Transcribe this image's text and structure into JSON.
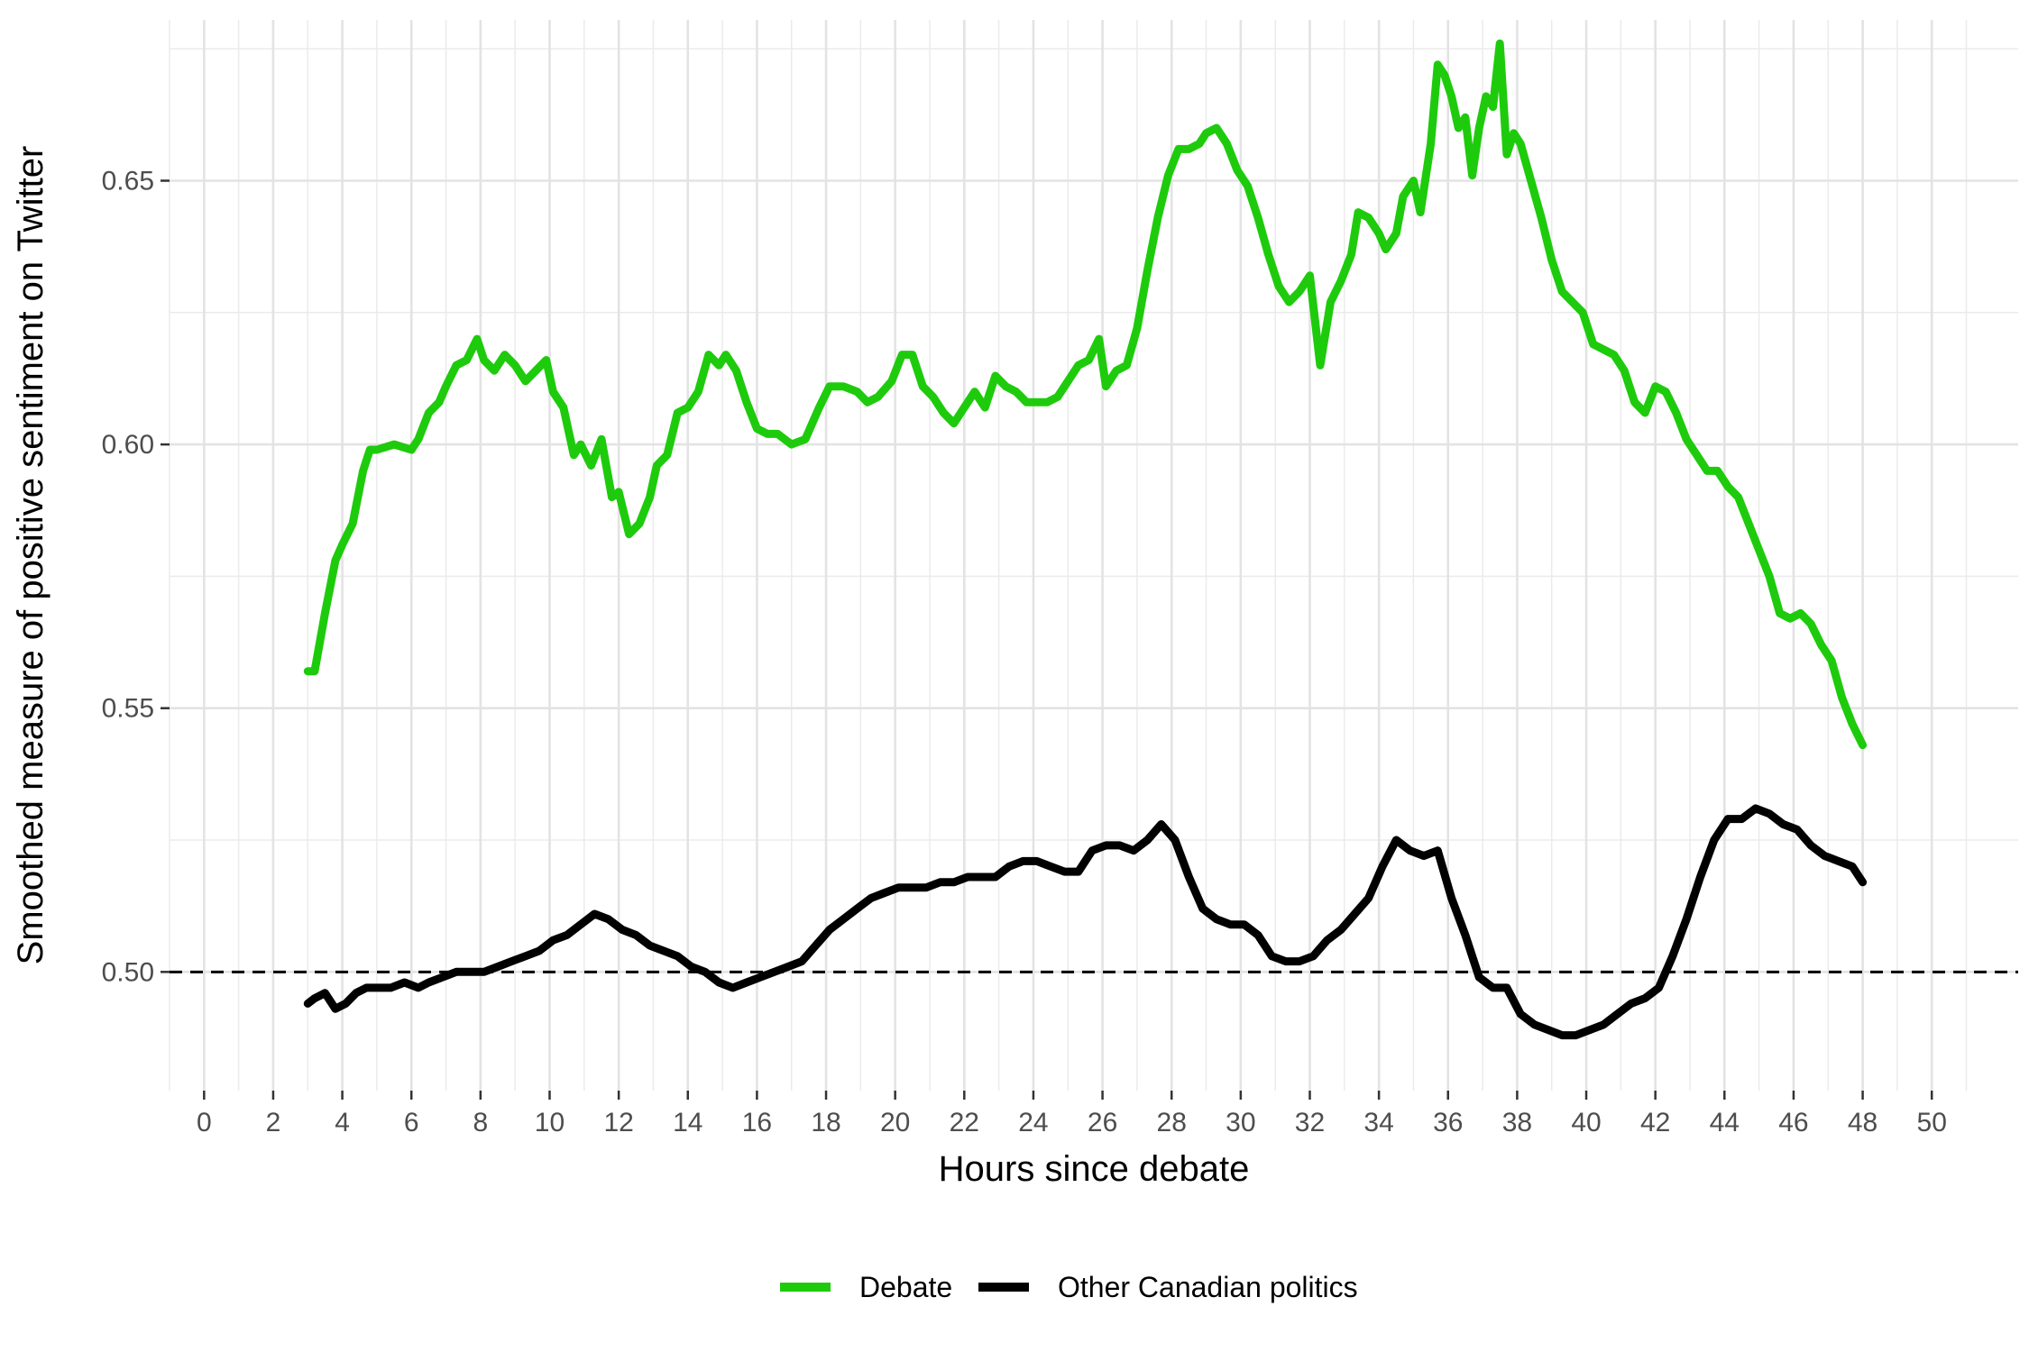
{
  "chart_data": {
    "type": "line",
    "xlabel": "Hours since debate",
    "ylabel": "Smoothed measure of positive sentiment on Twitter",
    "xlim": [
      -1,
      52.5
    ],
    "ylim": [
      0.4775,
      0.6805
    ],
    "x_ticks": [
      0,
      2,
      4,
      6,
      8,
      10,
      12,
      14,
      16,
      18,
      20,
      22,
      24,
      26,
      28,
      30,
      32,
      34,
      36,
      38,
      40,
      42,
      44,
      46,
      48,
      50
    ],
    "x_tick_labels": [
      "0",
      "2",
      "4",
      "6",
      "8",
      "10",
      "12",
      "14",
      "16",
      "18",
      "20",
      "22",
      "24",
      "26",
      "28",
      "30",
      "32",
      "34",
      "36",
      "38",
      "40",
      "42",
      "44",
      "46",
      "48",
      "50"
    ],
    "y_ticks": [
      0.5,
      0.55,
      0.6,
      0.65
    ],
    "y_tick_labels": [
      "0.50",
      "0.55",
      "0.60",
      "0.65"
    ],
    "reference_line": {
      "y": 0.5,
      "style": "dashed",
      "color": "#000000"
    },
    "grid": true,
    "legend_position": "bottom",
    "series": [
      {
        "name": "Debate",
        "color": "#1ecb0c",
        "x": [
          3.0,
          3.2,
          3.5,
          3.8,
          4.0,
          4.3,
          4.6,
          4.8,
          5.0,
          5.5,
          6.0,
          6.2,
          6.5,
          6.8,
          7.0,
          7.3,
          7.6,
          7.9,
          8.1,
          8.4,
          8.7,
          9.0,
          9.3,
          9.6,
          9.9,
          10.1,
          10.4,
          10.7,
          10.9,
          11.2,
          11.5,
          11.8,
          12.0,
          12.3,
          12.6,
          12.9,
          13.1,
          13.4,
          13.7,
          14.0,
          14.3,
          14.6,
          14.9,
          15.1,
          15.4,
          15.7,
          16.0,
          16.3,
          16.6,
          17.0,
          17.4,
          17.8,
          18.1,
          18.5,
          18.9,
          19.2,
          19.5,
          19.9,
          20.2,
          20.5,
          20.8,
          21.1,
          21.4,
          21.7,
          22.0,
          22.3,
          22.6,
          22.9,
          23.2,
          23.5,
          23.8,
          24.1,
          24.4,
          24.7,
          25.0,
          25.3,
          25.6,
          25.9,
          26.1,
          26.4,
          26.7,
          27.0,
          27.3,
          27.6,
          27.9,
          28.2,
          28.5,
          28.8,
          29.0,
          29.3,
          29.6,
          29.9,
          30.2,
          30.5,
          30.8,
          31.1,
          31.4,
          31.7,
          32.0,
          32.3,
          32.6,
          32.9,
          33.2,
          33.4,
          33.7,
          34.0,
          34.2,
          34.5,
          34.7,
          35.0,
          35.2,
          35.5,
          35.7,
          35.9,
          36.1,
          36.3,
          36.5,
          36.7,
          36.9,
          37.1,
          37.3,
          37.5,
          37.7,
          37.9,
          38.1,
          38.4,
          38.7,
          39.0,
          39.3,
          39.6,
          39.9,
          40.2,
          40.5,
          40.8,
          41.1,
          41.4,
          41.7,
          42.0,
          42.3,
          42.6,
          42.9,
          43.2,
          43.5,
          43.8,
          44.1,
          44.4,
          44.7,
          45.0,
          45.3,
          45.6,
          45.9,
          46.2,
          46.5,
          46.8,
          47.1,
          47.4,
          47.7,
          48.0
        ],
        "y": [
          0.557,
          0.557,
          0.568,
          0.578,
          0.581,
          0.585,
          0.595,
          0.599,
          0.599,
          0.6,
          0.599,
          0.601,
          0.606,
          0.608,
          0.611,
          0.615,
          0.616,
          0.62,
          0.616,
          0.614,
          0.617,
          0.615,
          0.612,
          0.614,
          0.616,
          0.61,
          0.607,
          0.598,
          0.6,
          0.596,
          0.601,
          0.59,
          0.591,
          0.583,
          0.585,
          0.59,
          0.596,
          0.598,
          0.606,
          0.607,
          0.61,
          0.617,
          0.615,
          0.617,
          0.614,
          0.608,
          0.603,
          0.602,
          0.602,
          0.6,
          0.601,
          0.607,
          0.611,
          0.611,
          0.61,
          0.608,
          0.609,
          0.612,
          0.617,
          0.617,
          0.611,
          0.609,
          0.606,
          0.604,
          0.607,
          0.61,
          0.607,
          0.613,
          0.611,
          0.61,
          0.608,
          0.608,
          0.608,
          0.609,
          0.612,
          0.615,
          0.616,
          0.62,
          0.611,
          0.614,
          0.615,
          0.622,
          0.633,
          0.643,
          0.651,
          0.656,
          0.656,
          0.657,
          0.659,
          0.66,
          0.657,
          0.652,
          0.649,
          0.643,
          0.636,
          0.63,
          0.627,
          0.629,
          0.632,
          0.615,
          0.627,
          0.631,
          0.636,
          0.644,
          0.643,
          0.64,
          0.637,
          0.64,
          0.647,
          0.65,
          0.644,
          0.657,
          0.672,
          0.67,
          0.666,
          0.66,
          0.662,
          0.651,
          0.66,
          0.666,
          0.664,
          0.676,
          0.655,
          0.659,
          0.657,
          0.65,
          0.643,
          0.635,
          0.629,
          0.627,
          0.625,
          0.619,
          0.618,
          0.617,
          0.614,
          0.608,
          0.606,
          0.611,
          0.61,
          0.606,
          0.601,
          0.598,
          0.595,
          0.595,
          0.592,
          0.59,
          0.585,
          0.58,
          0.575,
          0.568,
          0.567,
          0.568,
          0.566,
          0.562,
          0.559,
          0.552,
          0.547,
          0.543
        ]
      },
      {
        "name": "Other Canadian politics",
        "color": "#000000",
        "x": [
          3.0,
          3.2,
          3.5,
          3.8,
          4.1,
          4.4,
          4.7,
          5.0,
          5.4,
          5.8,
          6.2,
          6.5,
          6.9,
          7.3,
          7.7,
          8.1,
          8.5,
          8.9,
          9.3,
          9.7,
          10.1,
          10.5,
          10.9,
          11.3,
          11.7,
          12.1,
          12.5,
          12.9,
          13.3,
          13.7,
          14.1,
          14.5,
          14.9,
          15.3,
          15.7,
          16.1,
          16.5,
          16.9,
          17.3,
          17.7,
          18.1,
          18.5,
          18.9,
          19.3,
          19.7,
          20.1,
          20.5,
          20.9,
          21.3,
          21.7,
          22.1,
          22.5,
          22.9,
          23.3,
          23.7,
          24.1,
          24.5,
          24.9,
          25.3,
          25.7,
          26.1,
          26.5,
          26.9,
          27.3,
          27.7,
          28.1,
          28.5,
          28.9,
          29.3,
          29.7,
          30.1,
          30.5,
          30.9,
          31.3,
          31.7,
          32.1,
          32.5,
          32.9,
          33.3,
          33.7,
          34.1,
          34.5,
          34.9,
          35.3,
          35.7,
          36.1,
          36.5,
          36.9,
          37.3,
          37.7,
          38.1,
          38.5,
          38.9,
          39.3,
          39.7,
          40.1,
          40.5,
          40.9,
          41.3,
          41.7,
          42.1,
          42.5,
          42.9,
          43.3,
          43.7,
          44.1,
          44.5,
          44.9,
          45.3,
          45.7,
          46.1,
          46.5,
          46.9,
          47.3,
          47.7,
          48.0
        ],
        "y": [
          0.494,
          0.495,
          0.496,
          0.493,
          0.494,
          0.496,
          0.497,
          0.497,
          0.497,
          0.498,
          0.497,
          0.498,
          0.499,
          0.5,
          0.5,
          0.5,
          0.501,
          0.502,
          0.503,
          0.504,
          0.506,
          0.507,
          0.509,
          0.511,
          0.51,
          0.508,
          0.507,
          0.505,
          0.504,
          0.503,
          0.501,
          0.5,
          0.498,
          0.497,
          0.498,
          0.499,
          0.5,
          0.501,
          0.502,
          0.505,
          0.508,
          0.51,
          0.512,
          0.514,
          0.515,
          0.516,
          0.516,
          0.516,
          0.517,
          0.517,
          0.518,
          0.518,
          0.518,
          0.52,
          0.521,
          0.521,
          0.52,
          0.519,
          0.519,
          0.523,
          0.524,
          0.524,
          0.523,
          0.525,
          0.528,
          0.525,
          0.518,
          0.512,
          0.51,
          0.509,
          0.509,
          0.507,
          0.503,
          0.502,
          0.502,
          0.503,
          0.506,
          0.508,
          0.511,
          0.514,
          0.52,
          0.525,
          0.523,
          0.522,
          0.523,
          0.514,
          0.507,
          0.499,
          0.497,
          0.497,
          0.492,
          0.49,
          0.489,
          0.488,
          0.488,
          0.489,
          0.49,
          0.492,
          0.494,
          0.495,
          0.497,
          0.503,
          0.51,
          0.518,
          0.525,
          0.529,
          0.529,
          0.531,
          0.53,
          0.528,
          0.527,
          0.524,
          0.522,
          0.521,
          0.52,
          0.517
        ]
      }
    ]
  }
}
